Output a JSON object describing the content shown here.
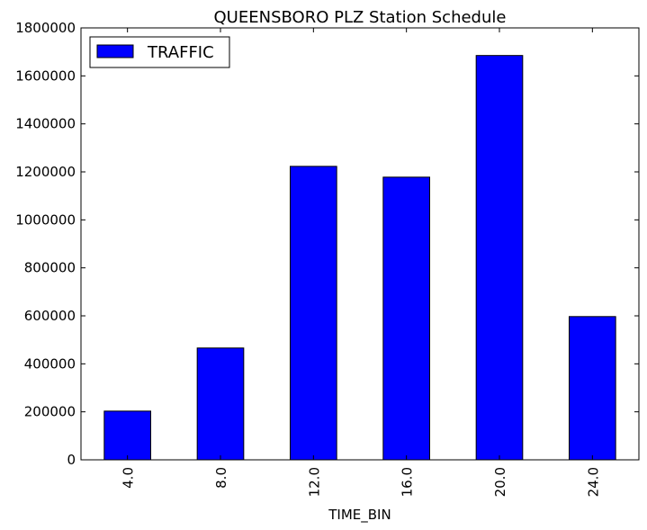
{
  "chart_data": {
    "type": "bar",
    "title": "QUEENSBORO PLZ Station Schedule",
    "xlabel": "TIME_BIN",
    "ylabel": "",
    "categories": [
      "4.0",
      "8.0",
      "12.0",
      "16.0",
      "20.0",
      "24.0"
    ],
    "series": [
      {
        "name": "TRAFFIC",
        "color": "#0000ff",
        "values": [
          203000,
          466000,
          1223000,
          1178000,
          1685000,
          597000
        ]
      }
    ],
    "ylim": [
      0,
      1800000
    ],
    "yticks": [
      "0",
      "200000",
      "400000",
      "600000",
      "800000",
      "1000000",
      "1200000",
      "1400000",
      "1600000",
      "1800000"
    ],
    "legend_position": "top-left",
    "grid": false
  }
}
